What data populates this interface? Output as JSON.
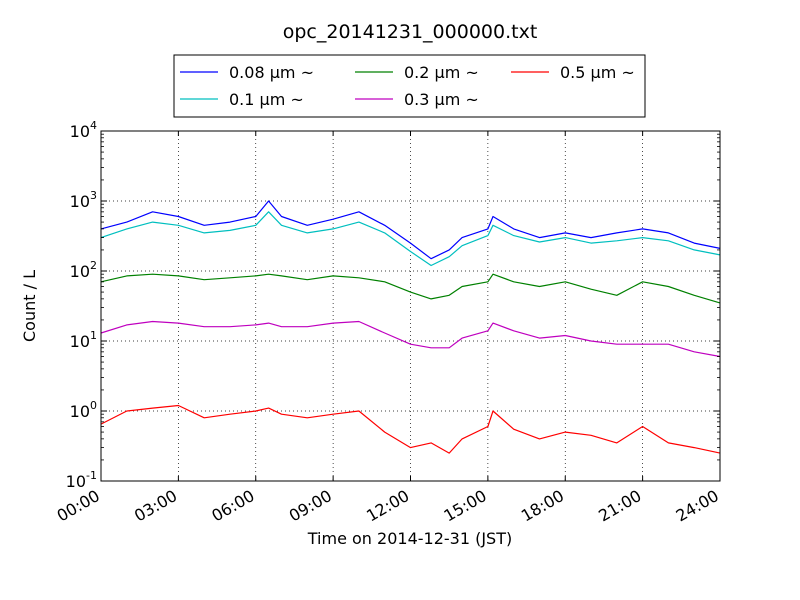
{
  "chart_data": {
    "type": "line",
    "title": "opc_20141231_000000.txt",
    "xlabel": "Time on 2014-12-31 (JST)",
    "ylabel": "Count / L",
    "y_scale": "log",
    "ylim": [
      0.1,
      10000
    ],
    "xlim": [
      0,
      24
    ],
    "grid": true,
    "legend_position": "upper-center, above plot",
    "x_tick_labels": [
      "00:00",
      "03:00",
      "06:00",
      "09:00",
      "12:00",
      "15:00",
      "18:00",
      "21:00",
      "24:00"
    ],
    "y_tick_labels": [
      {
        "base": "10",
        "exp": "-1"
      },
      {
        "base": "10",
        "exp": "0"
      },
      {
        "base": "10",
        "exp": "1"
      },
      {
        "base": "10",
        "exp": "2"
      },
      {
        "base": "10",
        "exp": "3"
      },
      {
        "base": "10",
        "exp": "4"
      }
    ],
    "x_unit": "hours (JST)",
    "x": [
      0,
      1,
      2,
      3,
      4,
      5,
      6,
      6.5,
      7,
      8,
      9,
      10,
      11,
      12,
      12.8,
      13.5,
      14,
      15,
      15.2,
      16,
      17,
      18,
      19,
      20,
      21,
      22,
      23,
      24
    ],
    "series": [
      {
        "name": "0.08 μm ~",
        "color": "#0000ff",
        "values": [
          400,
          500,
          700,
          600,
          450,
          500,
          600,
          1000,
          600,
          450,
          550,
          700,
          450,
          250,
          150,
          200,
          300,
          400,
          600,
          400,
          300,
          350,
          300,
          350,
          400,
          350,
          250,
          210
        ]
      },
      {
        "name": "0.1 μm ~",
        "color": "#00bfbf",
        "values": [
          300,
          400,
          500,
          450,
          350,
          380,
          450,
          700,
          450,
          350,
          400,
          500,
          350,
          190,
          120,
          160,
          230,
          320,
          450,
          320,
          260,
          300,
          250,
          270,
          300,
          270,
          200,
          170
        ]
      },
      {
        "name": "0.2 μm ~",
        "color": "#008000",
        "values": [
          70,
          85,
          90,
          85,
          75,
          80,
          85,
          90,
          85,
          75,
          85,
          80,
          70,
          50,
          40,
          45,
          60,
          70,
          90,
          70,
          60,
          70,
          55,
          45,
          70,
          60,
          45,
          35
        ]
      },
      {
        "name": "0.3 μm ~",
        "color": "#bf00bf",
        "values": [
          13,
          17,
          19,
          18,
          16,
          16,
          17,
          18,
          16,
          16,
          18,
          19,
          13,
          9,
          8,
          8,
          11,
          14,
          18,
          14,
          11,
          12,
          10,
          9,
          9,
          9,
          7,
          6
        ]
      },
      {
        "name": "0.5 μm ~",
        "color": "#ff0000",
        "values": [
          0.65,
          1.0,
          1.1,
          1.2,
          0.8,
          0.9,
          1.0,
          1.1,
          0.9,
          0.8,
          0.9,
          1.0,
          0.5,
          0.3,
          0.35,
          0.25,
          0.4,
          0.6,
          1.0,
          0.55,
          0.4,
          0.5,
          0.45,
          0.35,
          0.6,
          0.35,
          0.3,
          0.25
        ]
      }
    ]
  }
}
